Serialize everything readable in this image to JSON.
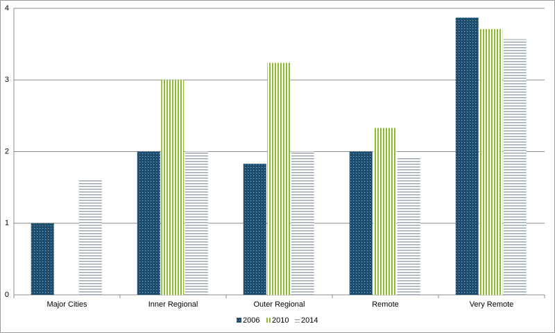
{
  "chart_data": {
    "type": "bar",
    "categories": [
      "Major Cities",
      "Inner Regional",
      "Outer Regional",
      "Remote",
      "Very Remote"
    ],
    "series": [
      {
        "name": "2006",
        "color": "#1f4e6e",
        "values": [
          1.0,
          2.0,
          1.83,
          2.0,
          3.87
        ]
      },
      {
        "name": "2010",
        "color": "#8cbb2e",
        "values": [
          null,
          3.0,
          3.24,
          2.33,
          3.71
        ]
      },
      {
        "name": "2014",
        "color": "#9aa7b3",
        "values": [
          1.6,
          2.0,
          2.0,
          1.93,
          3.57
        ]
      }
    ],
    "ylim": [
      0,
      4
    ],
    "yticks": [
      0,
      1,
      2,
      3,
      4
    ],
    "grid": true,
    "legend": "bottom"
  }
}
